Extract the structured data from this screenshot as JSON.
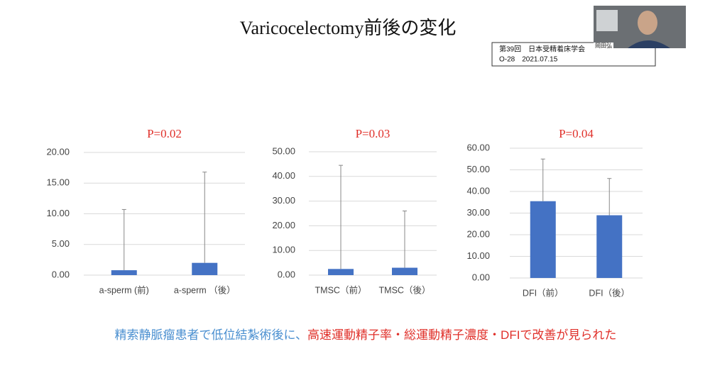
{
  "slide": {
    "title": "Varicocelectomy前後の変化",
    "caption_blue": "精索静脈瘤患者で低位結紮術後に、",
    "caption_red": "高速運動精子率・総運動精子濃度・DFIで改善が見られた",
    "badge_line1": "第39回　日本受精着床学会",
    "badge_line2": "O-28　2021.07.15",
    "video_name": "岡田弘"
  },
  "chart_data": [
    {
      "type": "bar",
      "title": "P=0.02",
      "categories": [
        "a-sperm (前)",
        "a-sperm （後）"
      ],
      "series": [
        {
          "color": "#4472c4",
          "values": [
            0.8,
            2.0
          ],
          "errors": [
            9.9,
            14.8
          ]
        }
      ],
      "ylim": [
        0,
        20
      ],
      "yticks": [
        {
          "value": 0,
          "label": "0.00"
        },
        {
          "value": 5,
          "label": "5.00"
        },
        {
          "value": 10,
          "label": "10.00"
        },
        {
          "value": 15,
          "label": "15.00"
        },
        {
          "value": 20,
          "label": "20.00"
        }
      ],
      "grid": true
    },
    {
      "type": "bar",
      "title": "P=0.03",
      "categories": [
        "TMSC（前）",
        "TMSC（後）"
      ],
      "series": [
        {
          "color": "#4472c4",
          "values": [
            2.5,
            3.0
          ],
          "errors": [
            42,
            23
          ]
        }
      ],
      "ylim": [
        0,
        50
      ],
      "yticks": [
        {
          "value": 0,
          "label": "0.00"
        },
        {
          "value": 10,
          "label": "10.00"
        },
        {
          "value": 20,
          "label": "20.00"
        },
        {
          "value": 30,
          "label": "30.00"
        },
        {
          "value": 40,
          "label": "40.00"
        },
        {
          "value": 50,
          "label": "50.00"
        }
      ],
      "grid": true
    },
    {
      "type": "bar",
      "title": "P=0.04",
      "categories": [
        "DFI（前）",
        "DFI（後）"
      ],
      "series": [
        {
          "color": "#4472c4",
          "values": [
            35.5,
            29.0
          ],
          "errors": [
            19.5,
            17
          ]
        }
      ],
      "ylim": [
        0,
        60
      ],
      "yticks": [
        {
          "value": 0,
          "label": "0.00"
        },
        {
          "value": 10,
          "label": "10.00"
        },
        {
          "value": 20,
          "label": "20.00"
        },
        {
          "value": 30,
          "label": "30.00"
        },
        {
          "value": 40,
          "label": "40.00"
        },
        {
          "value": 50,
          "label": "50.00"
        },
        {
          "value": 60,
          "label": "60.00"
        }
      ],
      "grid": true
    }
  ]
}
